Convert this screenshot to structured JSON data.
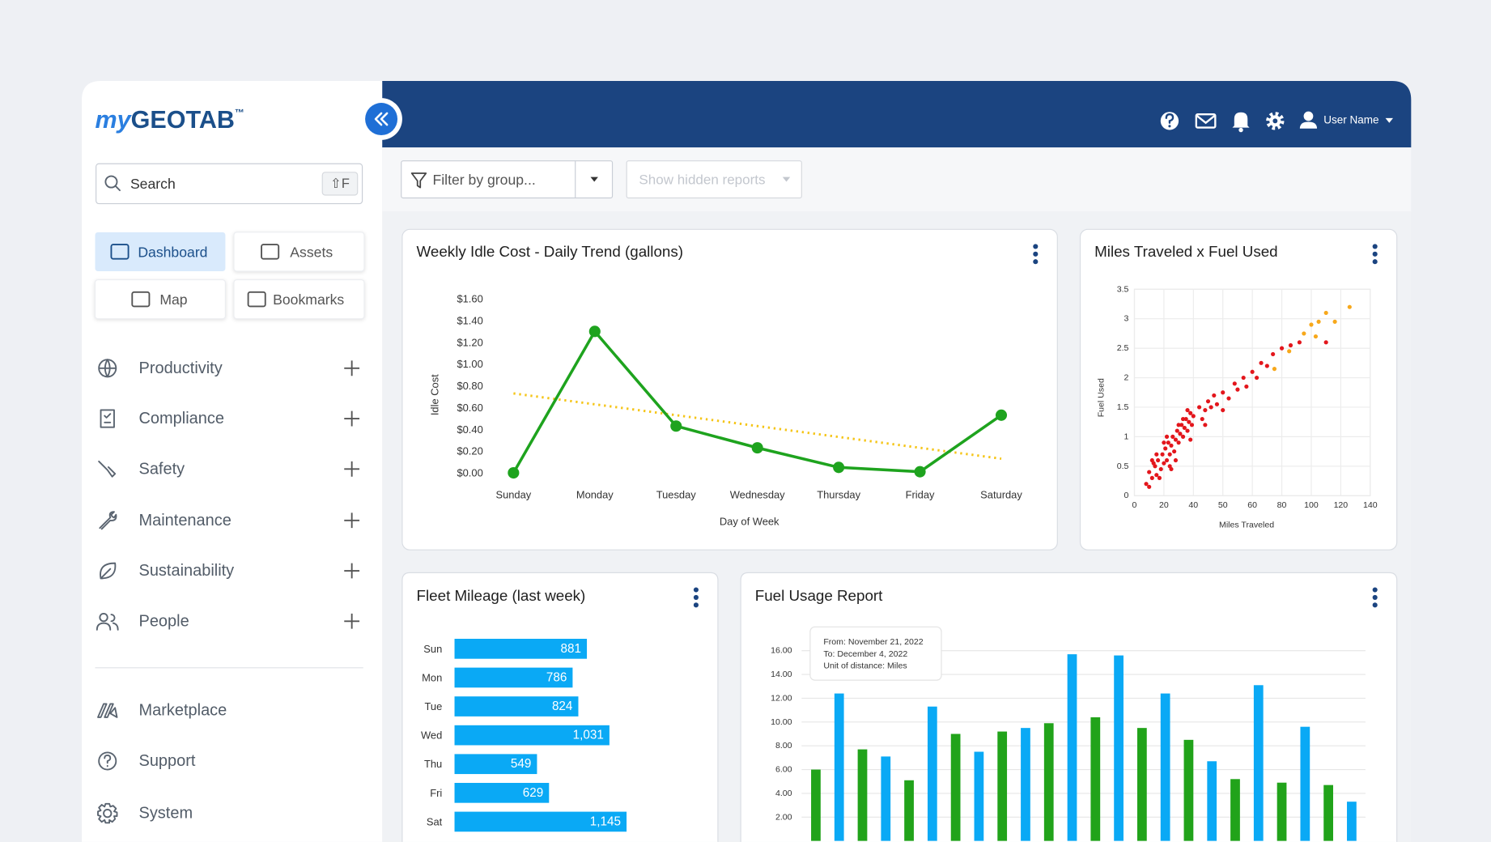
{
  "sidebar": {
    "logo": {
      "prefix": "my",
      "name": "GEOTAB",
      "mark": "™"
    },
    "search": {
      "placeholder": "Search",
      "shortcut": "⇧F"
    },
    "quick_links": [
      "Dashboard",
      "Assets",
      "Map",
      "Bookmarks"
    ],
    "menu": [
      "Productivity",
      "Compliance",
      "Safety",
      "Maintenance",
      "Sustainability",
      "People"
    ],
    "footer_links": [
      "Marketplace",
      "Support",
      "System"
    ]
  },
  "header": {
    "user_name": "User Name"
  },
  "toolbar": {
    "filter": "Filter by group...",
    "hidden_reports": "Show hidden reports"
  },
  "chart_data": [
    {
      "type": "line",
      "title": "Weekly Idle Cost - Daily Trend (gallons)",
      "x_label": "Day of Week",
      "y_label": "Idle Cost",
      "categories": [
        "Sunday",
        "Monday",
        "Tuesday",
        "Wednesday",
        "Thursday",
        "Friday",
        "Saturday"
      ],
      "series": [
        {
          "color": "#1ea31e",
          "values": [
            0.0,
            1.3,
            0.43,
            0.23,
            0.05,
            0.01,
            0.53
          ]
        }
      ],
      "trendline": {
        "color": "#f5c518",
        "values": [
          0.73,
          0.13
        ]
      },
      "ylim": [
        0,
        1.6
      ],
      "yticks": [
        {
          "value": 0,
          "label": "$0.00"
        },
        {
          "value": 0.2,
          "label": "$0.20"
        },
        {
          "value": 0.4,
          "label": "$0.40"
        },
        {
          "value": 0.6,
          "label": "$0.60"
        },
        {
          "value": 0.8,
          "label": "$0.80"
        },
        {
          "value": 1.0,
          "label": "$1.00"
        },
        {
          "value": 1.2,
          "label": "$1.20"
        },
        {
          "value": 1.4,
          "label": "$1.40"
        },
        {
          "value": 1.6,
          "label": "$1.60"
        }
      ]
    },
    {
      "type": "scatter",
      "title": "Miles Traveled x Fuel Used",
      "x_label": "Miles Traveled",
      "y_label": "Fuel Used",
      "series": [
        {
          "color": "#e3161c",
          "x": [
            8,
            10,
            12,
            14,
            15,
            16,
            18,
            19,
            20,
            21,
            22,
            23,
            24,
            25,
            26,
            27,
            28,
            29,
            30,
            31,
            32,
            33,
            34,
            35,
            36,
            37,
            38,
            39,
            40,
            42,
            43,
            44,
            45,
            46,
            47,
            48,
            50,
            52,
            54,
            55,
            57,
            58,
            60,
            63,
            66,
            70,
            74,
            80,
            86,
            92,
            10,
            13,
            17,
            20,
            24,
            28,
            33,
            38,
            44,
            50,
            15,
            22,
            30,
            36,
            25,
            12,
            110
          ],
          "values": [
            0.2,
            0.4,
            0.3,
            0.5,
            0.35,
            0.6,
            0.45,
            0.7,
            0.55,
            0.8,
            0.6,
            0.9,
            0.7,
            0.85,
            1.0,
            0.75,
            0.95,
            1.1,
            0.9,
            1.05,
            1.2,
            1.0,
            1.15,
            1.3,
            1.1,
            1.25,
            1.4,
            1.2,
            1.35,
            1.5,
            1.3,
            1.45,
            1.6,
            1.5,
            1.7,
            1.55,
            1.75,
            1.65,
            1.9,
            1.8,
            2.0,
            1.85,
            2.1,
            2.0,
            2.25,
            2.2,
            2.4,
            2.5,
            2.55,
            2.6,
            0.15,
            0.55,
            0.3,
            0.9,
            0.5,
            0.6,
            1.3,
            0.95,
            1.2,
            1.45,
            0.7,
            1.0,
            1.2,
            1.45,
            0.45,
            0.6,
            2.6
          ]
        },
        {
          "color": "#f7a81b",
          "x": [
            75,
            85,
            95,
            100,
            103,
            105,
            110,
            116,
            126
          ],
          "values": [
            2.15,
            2.45,
            2.75,
            2.9,
            2.7,
            2.95,
            3.1,
            2.95,
            3.2
          ]
        }
      ],
      "xlim": [
        0,
        140
      ],
      "xticks": [
        0,
        20,
        40,
        50,
        60,
        80,
        100,
        120,
        140
      ],
      "ylim": [
        0,
        3.5
      ],
      "yticks": [
        0,
        0.5,
        1,
        1.5,
        2,
        2.5,
        3,
        3.5
      ],
      "grid": true
    },
    {
      "type": "hbar",
      "title": "Fleet Mileage (last week)",
      "categories": [
        "Sun",
        "Mon",
        "Tue",
        "Wed",
        "Thu",
        "Fri",
        "Sat"
      ],
      "values": [
        881,
        786,
        824,
        1031,
        549,
        629,
        1145
      ],
      "value_labels": [
        "881",
        "786",
        "824",
        "1,031",
        "549",
        "629",
        "1,145"
      ],
      "color": "#0aa9f5"
    },
    {
      "type": "bar",
      "title": "Fuel Usage Report",
      "annotation": [
        "From: November 21, 2022",
        "To: December 4, 2022",
        "Unit of distance: Miles"
      ],
      "categories": [
        null,
        null,
        null,
        null,
        null,
        null,
        null,
        null,
        null,
        null,
        null,
        null
      ],
      "series": [
        {
          "color": "#21a31a",
          "values": [
            6.0,
            7.7,
            5.1,
            9.0,
            9.2,
            9.9,
            10.4,
            9.5,
            8.5,
            5.2,
            4.9,
            4.7
          ]
        },
        {
          "color": "#0aa9f5",
          "values": [
            12.4,
            7.1,
            11.3,
            7.5,
            9.5,
            15.7,
            15.6,
            12.4,
            6.7,
            13.1,
            9.6,
            3.3
          ]
        }
      ],
      "ylim": [
        0,
        16
      ],
      "yticks": [
        {
          "value": 2,
          "label": "2.00"
        },
        {
          "value": 4,
          "label": "4.00"
        },
        {
          "value": 6,
          "label": "6.00"
        },
        {
          "value": 8,
          "label": "8.00"
        },
        {
          "value": 10,
          "label": "10.00"
        },
        {
          "value": 12,
          "label": "12.00"
        },
        {
          "value": 14,
          "label": "14.00"
        },
        {
          "value": 16,
          "label": "16.00"
        }
      ],
      "grid": true
    }
  ]
}
